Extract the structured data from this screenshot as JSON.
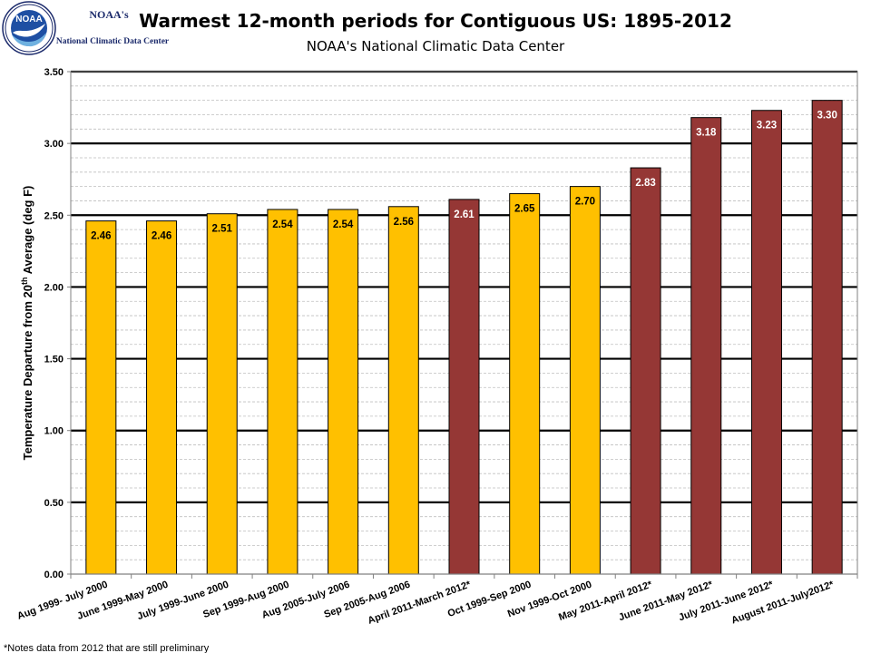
{
  "header": {
    "logo_seal_text": "NOAA",
    "logo_name": "NOAA's",
    "logo_org": "National Climatic Data Center"
  },
  "footnote": "*Notes data from 2012 that are still preliminary",
  "colors": {
    "gold": "#FFC000",
    "maroon": "#953735",
    "grid_major": "#000000",
    "grid_minor": "#bfbfbf"
  },
  "chart_data": {
    "type": "bar",
    "title": "Warmest 12-month periods for Contiguous US: 1895-2012",
    "subtitle": "NOAA's National Climatic Data Center",
    "ylabel_parts": [
      "Temperature Departure from 20",
      "th",
      " Average (deg F)"
    ],
    "xlabel": "",
    "ylim": [
      0,
      3.5
    ],
    "yticks": [
      "0.00",
      "0.50",
      "1.00",
      "1.50",
      "2.00",
      "2.50",
      "3.00",
      "3.50"
    ],
    "grid": true,
    "legend": "none",
    "categories": [
      "Aug 1999- July 2000",
      "June 1999-May 2000",
      "July 1999-June 2000",
      "Sep 1999-Aug 2000",
      "Aug 2005-July 2006",
      "Sep 2005-Aug 2006",
      "April 2011-March 2012*",
      "Oct 1999-Sep 2000",
      "Nov 1999-Oct 2000",
      "May 2011-April 2012*",
      "June 2011-May 2012*",
      "July 2011-June 2012*",
      "August 2011-July2012*"
    ],
    "values": [
      2.46,
      2.46,
      2.51,
      2.54,
      2.54,
      2.56,
      2.61,
      2.65,
      2.7,
      2.83,
      3.18,
      3.23,
      3.3
    ],
    "value_labels": [
      "2.46",
      "2.46",
      "2.51",
      "2.54",
      "2.54",
      "2.56",
      "2.61",
      "2.65",
      "2.70",
      "2.83",
      "3.18",
      "3.23",
      "3.30"
    ],
    "bar_colors": [
      "gold",
      "gold",
      "gold",
      "gold",
      "gold",
      "gold",
      "maroon",
      "gold",
      "gold",
      "maroon",
      "maroon",
      "maroon",
      "maroon"
    ]
  }
}
